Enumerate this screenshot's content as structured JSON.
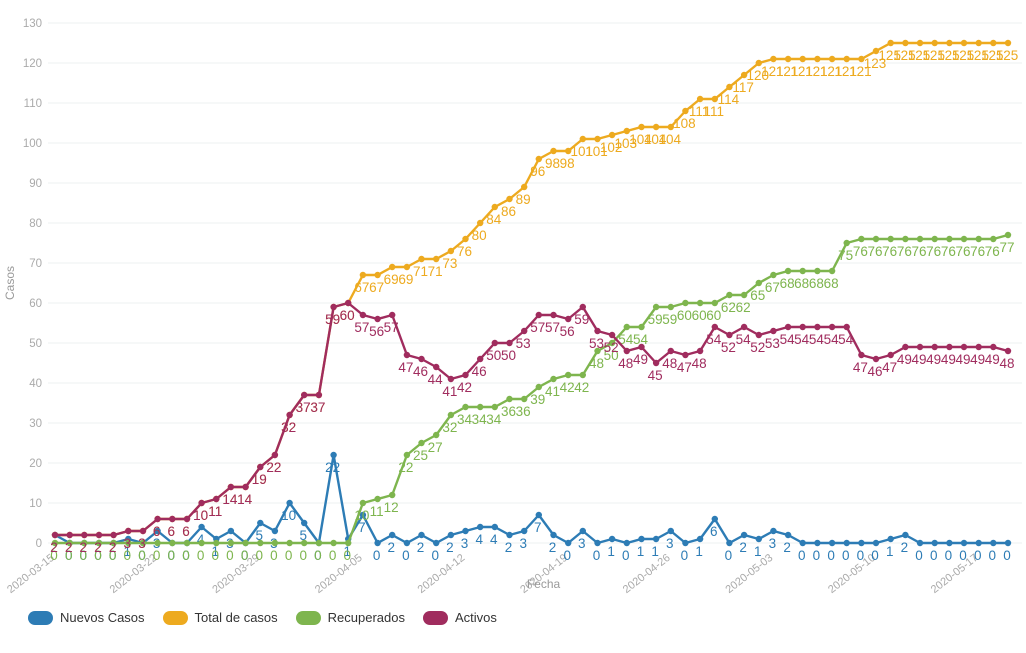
{
  "chart_data": {
    "type": "line",
    "title": "",
    "xlabel": "Fecha",
    "ylabel": "Casos",
    "ylim": [
      0,
      130
    ],
    "ytick_step": 10,
    "grid": true,
    "legend_position": "bottom-left",
    "point_labels": true,
    "x_tick_every": 7,
    "x": [
      "2020-03-15",
      "2020-03-16",
      "2020-03-17",
      "2020-03-18",
      "2020-03-19",
      "2020-03-20",
      "2020-03-21",
      "2020-03-22",
      "2020-03-23",
      "2020-03-24",
      "2020-03-25",
      "2020-03-26",
      "2020-03-27",
      "2020-03-28",
      "2020-03-29",
      "2020-03-30",
      "2020-03-31",
      "2020-04-01",
      "2020-04-02",
      "2020-04-03",
      "2020-04-04",
      "2020-04-05",
      "2020-04-06",
      "2020-04-07",
      "2020-04-08",
      "2020-04-09",
      "2020-04-10",
      "2020-04-11",
      "2020-04-12",
      "2020-04-13",
      "2020-04-14",
      "2020-04-15",
      "2020-04-16",
      "2020-04-17",
      "2020-04-18",
      "2020-04-19",
      "2020-04-20",
      "2020-04-21",
      "2020-04-22",
      "2020-04-23",
      "2020-04-24",
      "2020-04-25",
      "2020-04-26",
      "2020-04-27",
      "2020-04-28",
      "2020-04-29",
      "2020-04-30",
      "2020-05-01",
      "2020-05-02",
      "2020-05-03",
      "2020-05-04",
      "2020-05-05",
      "2020-05-06",
      "2020-05-07",
      "2020-05-08",
      "2020-05-09",
      "2020-05-10",
      "2020-05-11",
      "2020-05-12",
      "2020-05-13",
      "2020-05-14",
      "2020-05-15",
      "2020-05-16",
      "2020-05-17",
      "2020-05-18",
      "2020-05-19"
    ],
    "series": [
      {
        "name": "Nuevos Casos",
        "color": "#2d7cb5",
        "values": [
          2,
          0,
          0,
          0,
          0,
          1,
          0,
          3,
          0,
          0,
          4,
          1,
          3,
          0,
          5,
          3,
          10,
          5,
          0,
          22,
          1,
          7,
          0,
          2,
          0,
          2,
          0,
          2,
          3,
          4,
          4,
          2,
          3,
          7,
          2,
          0,
          3,
          0,
          1,
          0,
          1,
          1,
          3,
          0,
          1,
          6,
          0,
          2,
          1,
          3,
          2,
          0,
          0,
          0,
          0,
          0,
          0,
          1,
          2,
          0,
          0,
          0,
          0,
          0,
          0,
          0
        ]
      },
      {
        "name": "Total de casos",
        "color": "#edaa1f",
        "values": [
          2,
          2,
          2,
          2,
          2,
          3,
          3,
          6,
          6,
          6,
          10,
          11,
          14,
          14,
          19,
          22,
          32,
          37,
          37,
          59,
          60,
          67,
          67,
          69,
          69,
          71,
          71,
          73,
          76,
          80,
          84,
          86,
          89,
          96,
          98,
          98,
          101,
          101,
          102,
          103,
          104,
          104,
          104,
          108,
          111,
          111,
          114,
          117,
          120,
          121,
          121,
          121,
          121,
          121,
          121,
          121,
          123,
          125,
          125,
          125,
          125,
          125,
          125,
          125,
          125,
          125
        ]
      },
      {
        "name": "Recuperados",
        "color": "#7eb54e",
        "values": [
          0,
          0,
          0,
          0,
          0,
          0,
          0,
          0,
          0,
          0,
          0,
          0,
          0,
          0,
          0,
          0,
          0,
          0,
          0,
          0,
          0,
          10,
          11,
          12,
          22,
          25,
          27,
          32,
          34,
          34,
          34,
          36,
          36,
          39,
          41,
          42,
          42,
          48,
          50,
          54,
          54,
          59,
          59,
          60,
          60,
          60,
          62,
          62,
          65,
          67,
          68,
          68,
          68,
          68,
          75,
          76,
          76,
          76,
          76,
          76,
          76,
          76,
          76,
          76,
          76,
          77
        ]
      },
      {
        "name": "Activos",
        "color": "#a02c5e",
        "values": [
          2,
          2,
          2,
          2,
          2,
          3,
          3,
          6,
          6,
          6,
          10,
          11,
          14,
          14,
          19,
          22,
          32,
          37,
          37,
          59,
          60,
          57,
          56,
          57,
          47,
          46,
          44,
          41,
          42,
          46,
          50,
          50,
          53,
          57,
          57,
          56,
          59,
          53,
          52,
          48,
          49,
          45,
          48,
          47,
          48,
          54,
          52,
          54,
          52,
          53,
          54,
          54,
          54,
          54,
          54,
          47,
          46,
          47,
          49,
          49,
          49,
          49,
          49,
          49,
          49,
          48
        ]
      }
    ],
    "axis_text_color": "#aaaaaa",
    "grid_color": "#eef0f2",
    "legend_text_color": "#333333"
  }
}
